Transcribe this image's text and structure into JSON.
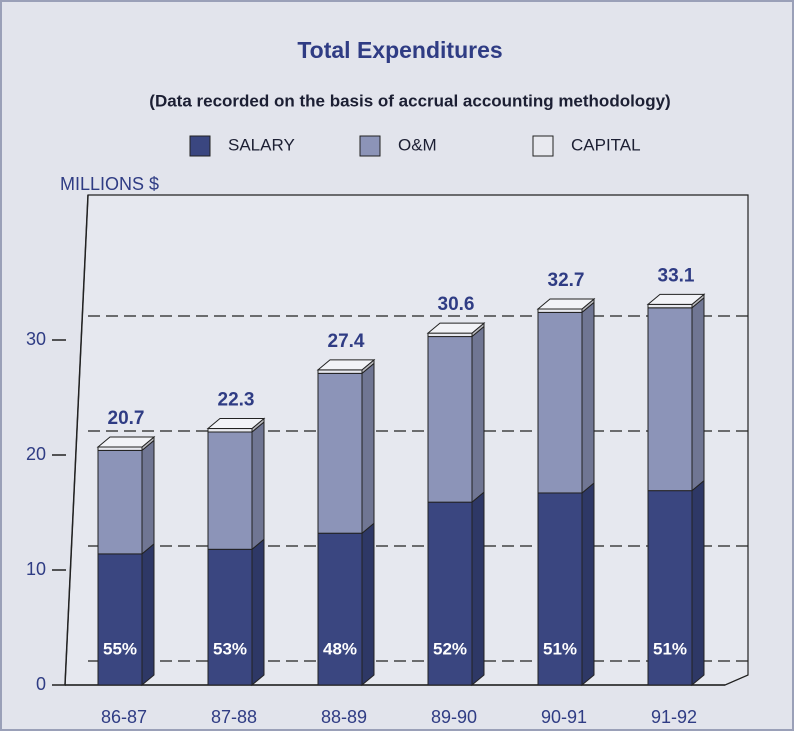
{
  "chart_data": {
    "type": "bar3d",
    "title": "Total Expenditures",
    "subtitle": "(Data recorded on the basis of accrual accounting methodology)",
    "y_label": "MILLIONS $",
    "categories": [
      "86-87",
      "87-88",
      "88-89",
      "89-90",
      "90-91",
      "91-92"
    ],
    "series": [
      {
        "name": "SALARY",
        "color": "#3a4680",
        "values": [
          11.4,
          11.8,
          13.2,
          15.9,
          16.7,
          16.9
        ]
      },
      {
        "name": "O&M",
        "color": "#8c94b8",
        "values": [
          9.0,
          10.2,
          13.9,
          14.4,
          15.7,
          15.9
        ]
      },
      {
        "name": "CAPITAL",
        "color": "#e8e9ef",
        "values": [
          0.3,
          0.3,
          0.3,
          0.3,
          0.3,
          0.3
        ]
      }
    ],
    "totals": [
      20.7,
      22.3,
      27.4,
      30.6,
      32.7,
      33.1
    ],
    "salary_share_labels": [
      "55%",
      "53%",
      "48%",
      "52%",
      "51%",
      "51%"
    ],
    "ylim": [
      0,
      36
    ],
    "yticks": [
      0,
      10,
      20,
      30
    ],
    "grid": true,
    "stacked": true
  }
}
